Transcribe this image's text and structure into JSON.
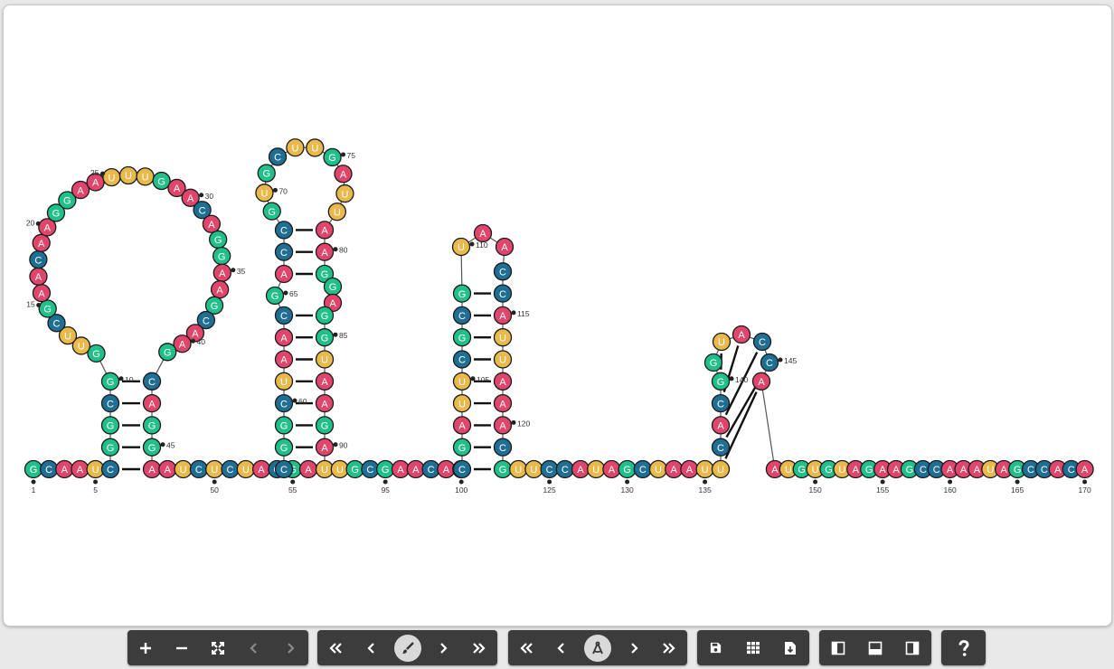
{
  "sequence": "GCAAUCGGCGGUUCGAACAAGGAAUUUGAACAGGAAGCAAGCAGGAAUCUCUACGACGGCUAACGACCGUGCUUGAUUAAGGAGGUAAGAUUGCGAACAACGAUUCGCGUAACCAUUAAACGUUCCAUAGCUAAUUCACGGUACCAAUGUGUAGAAGCCAAAUAGCCACAA",
  "numbering_labels": [
    "1",
    "5",
    "10",
    "15",
    "20",
    "25",
    "30",
    "35",
    "40",
    "45",
    "50",
    "55",
    "60",
    "65",
    "70",
    "75",
    "80",
    "85",
    "90",
    "95",
    "100",
    "105",
    "110",
    "115",
    "120",
    "125",
    "130",
    "135",
    "140",
    "145",
    "150",
    "155",
    "160",
    "165",
    "170"
  ],
  "colors": {
    "A": "#e0466b",
    "C": "#1f6f95",
    "G": "#21c08a",
    "U": "#e9b94b",
    "stroke": "#111111",
    "label": "#333333"
  },
  "toolbar": {
    "groups": [
      {
        "name": "zoom-group",
        "buttons": [
          {
            "name": "zoom-in-button",
            "icon": "plus-icon",
            "enabled": true
          },
          {
            "name": "zoom-out-button",
            "icon": "minus-icon",
            "enabled": true
          },
          {
            "name": "fit-view-button",
            "icon": "expand-icon",
            "enabled": true
          },
          {
            "name": "undo-button",
            "icon": "chevron-left-icon",
            "enabled": false
          },
          {
            "name": "redo-button",
            "icon": "chevron-right-icon",
            "enabled": false
          }
        ]
      },
      {
        "name": "color-scheme-group",
        "buttons": [
          {
            "name": "color-first-button",
            "icon": "double-chevron-left-icon",
            "enabled": true
          },
          {
            "name": "color-prev-button",
            "icon": "chevron-left-icon",
            "enabled": true
          },
          {
            "name": "paint-brush-button",
            "icon": "paint-brush-icon",
            "enabled": true
          },
          {
            "name": "color-next-button",
            "icon": "chevron-right-icon",
            "enabled": true
          },
          {
            "name": "color-last-button",
            "icon": "double-chevron-right-icon",
            "enabled": true
          }
        ]
      },
      {
        "name": "layout-group",
        "buttons": [
          {
            "name": "layout-first-button",
            "icon": "double-chevron-left-icon",
            "enabled": true
          },
          {
            "name": "layout-prev-button",
            "icon": "chevron-left-icon",
            "enabled": true
          },
          {
            "name": "drafting-compass-button",
            "icon": "drafting-compass-icon",
            "enabled": true
          },
          {
            "name": "layout-next-button",
            "icon": "chevron-right-icon",
            "enabled": true
          },
          {
            "name": "layout-last-button",
            "icon": "double-chevron-right-icon",
            "enabled": true
          }
        ]
      },
      {
        "name": "file-group",
        "buttons": [
          {
            "name": "save-button",
            "icon": "floppy-disk-icon",
            "enabled": true
          },
          {
            "name": "grid-button",
            "icon": "grid-icon",
            "enabled": true
          },
          {
            "name": "download-button",
            "icon": "file-download-icon",
            "enabled": true
          }
        ]
      },
      {
        "name": "panel-group",
        "buttons": [
          {
            "name": "left-panel-button",
            "icon": "left-panel-icon",
            "enabled": true
          },
          {
            "name": "bottom-panel-button",
            "icon": "bottom-panel-icon",
            "enabled": true
          },
          {
            "name": "right-panel-button",
            "icon": "right-panel-icon",
            "enabled": true
          }
        ]
      },
      {
        "name": "help-group",
        "buttons": [
          {
            "name": "help-button",
            "icon": "help-icon",
            "enabled": true
          }
        ]
      }
    ]
  }
}
